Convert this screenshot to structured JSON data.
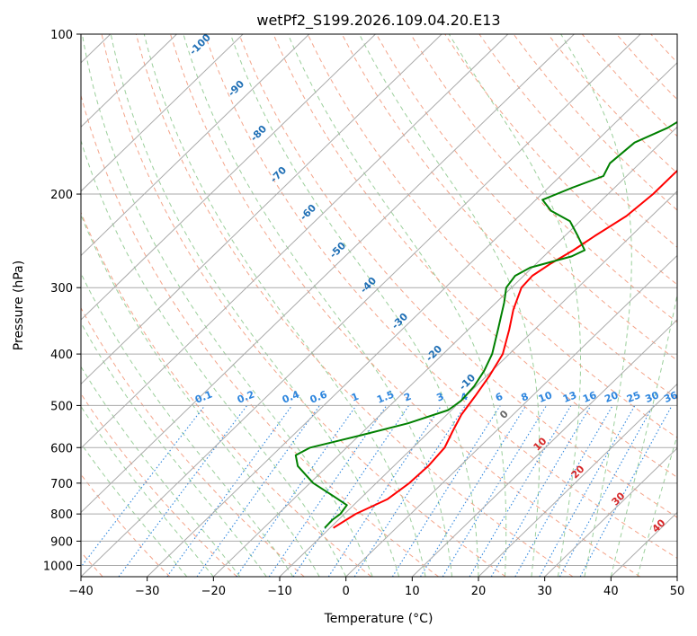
{
  "chart_data": {
    "type": "line",
    "title": "wetPf2_S199.2026.109.04.20.E13",
    "xlabel": "Temperature (°C)",
    "ylabel": "Pressure (hPa)",
    "xlim": [
      -40,
      50
    ],
    "ylim": [
      1050,
      100
    ],
    "y_scale": "log",
    "skew": "skew-T log-P diagram",
    "xticks": [
      "−40",
      "−30",
      "−20",
      "−10",
      "0",
      "10",
      "20",
      "30",
      "40",
      "50"
    ],
    "xtick_values": [
      -40,
      -30,
      -20,
      -10,
      0,
      10,
      20,
      30,
      40,
      50
    ],
    "yticks": [
      "100",
      "200",
      "300",
      "400",
      "500",
      "600",
      "700",
      "800",
      "900",
      "1000"
    ],
    "ytick_values": [
      100,
      200,
      300,
      400,
      500,
      600,
      700,
      800,
      900,
      1000
    ],
    "series": [
      {
        "name": "Temperature",
        "color": "#ff0000",
        "points": [
          [
            850,
            -9.5
          ],
          [
            800,
            -8.3
          ],
          [
            750,
            -5.8
          ],
          [
            700,
            -5.0
          ],
          [
            650,
            -4.8
          ],
          [
            600,
            -5.2
          ],
          [
            560,
            -6.5
          ],
          [
            520,
            -7.8
          ],
          [
            480,
            -8.6
          ],
          [
            440,
            -9.6
          ],
          [
            400,
            -11.0
          ],
          [
            360,
            -13.8
          ],
          [
            330,
            -16.3
          ],
          [
            300,
            -18.5
          ],
          [
            285,
            -18.7
          ],
          [
            270,
            -17.8
          ],
          [
            255,
            -16.5
          ],
          [
            240,
            -15.5
          ],
          [
            220,
            -13.8
          ],
          [
            200,
            -13.2
          ],
          [
            180,
            -13.2
          ],
          [
            160,
            -14.0
          ],
          [
            140,
            -15.0
          ],
          [
            125,
            -16.8
          ],
          [
            115,
            -18.3
          ],
          [
            100,
            -21.5
          ]
        ]
      },
      {
        "name": "Dewpoint",
        "color": "#008000",
        "points": [
          [
            850,
            -10.8
          ],
          [
            820,
            -10.9
          ],
          [
            800,
            -10.6
          ],
          [
            770,
            -11.0
          ],
          [
            740,
            -14.5
          ],
          [
            700,
            -19.5
          ],
          [
            650,
            -24.5
          ],
          [
            620,
            -26.5
          ],
          [
            600,
            -25.5
          ],
          [
            570,
            -20.0
          ],
          [
            540,
            -14.5
          ],
          [
            510,
            -10.5
          ],
          [
            490,
            -10.0
          ],
          [
            460,
            -10.3
          ],
          [
            430,
            -11.2
          ],
          [
            400,
            -12.6
          ],
          [
            360,
            -15.5
          ],
          [
            320,
            -18.8
          ],
          [
            300,
            -20.8
          ],
          [
            285,
            -21.3
          ],
          [
            275,
            -20.3
          ],
          [
            262,
            -15.8
          ],
          [
            255,
            -14.8
          ],
          [
            240,
            -18.0
          ],
          [
            225,
            -21.5
          ],
          [
            215,
            -26.0
          ],
          [
            205,
            -29.0
          ],
          [
            195,
            -26.5
          ],
          [
            185,
            -23.5
          ],
          [
            175,
            -24.5
          ],
          [
            160,
            -24.0
          ],
          [
            150,
            -21.3
          ],
          [
            140,
            -19.8
          ],
          [
            120,
            -16.2
          ],
          [
            100,
            -11.0
          ]
        ]
      }
    ],
    "dry_adiabat_labels": [
      "-100",
      "-90",
      "-80",
      "-70",
      "-60",
      "-50",
      "-40",
      "-30",
      "-20",
      "-10",
      "0",
      "10",
      "20",
      "30",
      "40"
    ],
    "dry_adiabat_label_values": [
      -100,
      -90,
      -80,
      -70,
      -60,
      -50,
      -40,
      -30,
      -20,
      -10,
      0,
      10,
      20,
      30,
      40
    ],
    "mixing_ratio_labels": [
      "0.1",
      "0.2",
      "0.4",
      "0.6",
      "1",
      "1.5",
      "2",
      "3",
      "4",
      "6",
      "8",
      "10",
      "13",
      "16",
      "20",
      "25",
      "30",
      "36"
    ],
    "mixing_ratio_values": [
      0.1,
      0.2,
      0.4,
      0.6,
      1,
      1.5,
      2,
      3,
      4,
      6,
      8,
      10,
      13,
      16,
      20,
      25,
      30,
      36
    ],
    "legend": "none",
    "grid": true,
    "colors": {
      "temperature": "#ff0000",
      "dewpoint": "#008000",
      "isotherm": "#aaaaaa",
      "isobar": "#aaaaaa",
      "dry_adiabat": "#f4a48a",
      "moist_adiabat": "#9bcf9b",
      "mixing_ratio": "#2e86de",
      "label_blue": "#1f6fb5",
      "label_red": "#d62728"
    }
  }
}
